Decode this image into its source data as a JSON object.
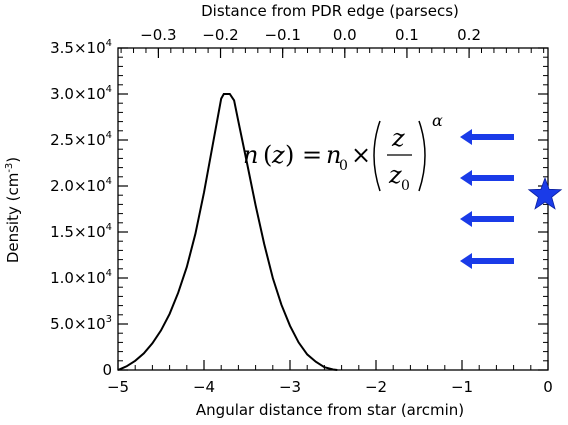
{
  "chart_data": {
    "type": "line",
    "title": "",
    "xlabel": "Angular distance from star (arcmin)",
    "ylabel": "Density (cm",
    "ylabel_sup": "-3",
    "ylabel_end": ")",
    "top_xlabel": "Distance from PDR edge (parsecs)",
    "xlim": [
      -5,
      0
    ],
    "ylim": [
      0,
      35000
    ],
    "top_xlim": [
      -0.365,
      0.327
    ],
    "x_ticks": [
      "-5",
      "-4",
      "-3",
      "-2",
      "-1",
      "0"
    ],
    "x_tick_values": [
      -5,
      -4,
      -3,
      -2,
      -1,
      0
    ],
    "top_ticks": [
      "-0.3",
      "-0.2",
      "-0.1",
      "0.0",
      "0.1",
      "0.2"
    ],
    "top_tick_values": [
      -0.3,
      -0.2,
      -0.1,
      0.0,
      0.1,
      0.2
    ],
    "y_ticks": [
      {
        "value": 0,
        "mant": "0",
        "exp": ""
      },
      {
        "value": 5000,
        "mant": "5.0×10",
        "exp": "3"
      },
      {
        "value": 10000,
        "mant": "1.0×10",
        "exp": "4"
      },
      {
        "value": 15000,
        "mant": "1.5×10",
        "exp": "4"
      },
      {
        "value": 20000,
        "mant": "2.0×10",
        "exp": "4"
      },
      {
        "value": 25000,
        "mant": "2.5×10",
        "exp": "4"
      },
      {
        "value": 30000,
        "mant": "3.0×10",
        "exp": "4"
      },
      {
        "value": 35000,
        "mant": "3.5×10",
        "exp": "4"
      }
    ],
    "grid": false,
    "series": [
      {
        "x": [
          -5.0,
          -4.95,
          -4.9,
          -4.8,
          -4.7,
          -4.6,
          -4.5,
          -4.4,
          -4.3,
          -4.2,
          -4.1,
          -4.0,
          -3.9,
          -3.8,
          -3.77,
          -3.7,
          -3.65,
          -3.6,
          -3.5,
          -3.4,
          -3.3,
          -3.2,
          -3.1,
          -3.0,
          -2.9,
          -2.8,
          -2.7,
          -2.6,
          -2.5,
          -2.45
        ],
        "y": [
          0,
          200,
          400,
          1000,
          1800,
          2900,
          4300,
          6100,
          8400,
          11200,
          14800,
          19300,
          24400,
          29500,
          30000,
          30000,
          29300,
          27000,
          22500,
          17900,
          13700,
          10000,
          7100,
          4800,
          3000,
          1700,
          900,
          300,
          50,
          0
        ],
        "color": "#000000"
      }
    ],
    "annotations": {
      "formula": {
        "n": "n",
        "z": "z",
        "eq": "=",
        "n0_base": "n",
        "n0_sub": "0",
        "times": "×",
        "frac_num": "z",
        "frac_den_base": "z",
        "frac_den_sub": "0",
        "exponent": "α"
      },
      "arrows": {
        "count": 4,
        "direction": "left",
        "color": "#1a3be8"
      },
      "star": {
        "shape": "star",
        "color": "#1a3be8"
      }
    }
  }
}
